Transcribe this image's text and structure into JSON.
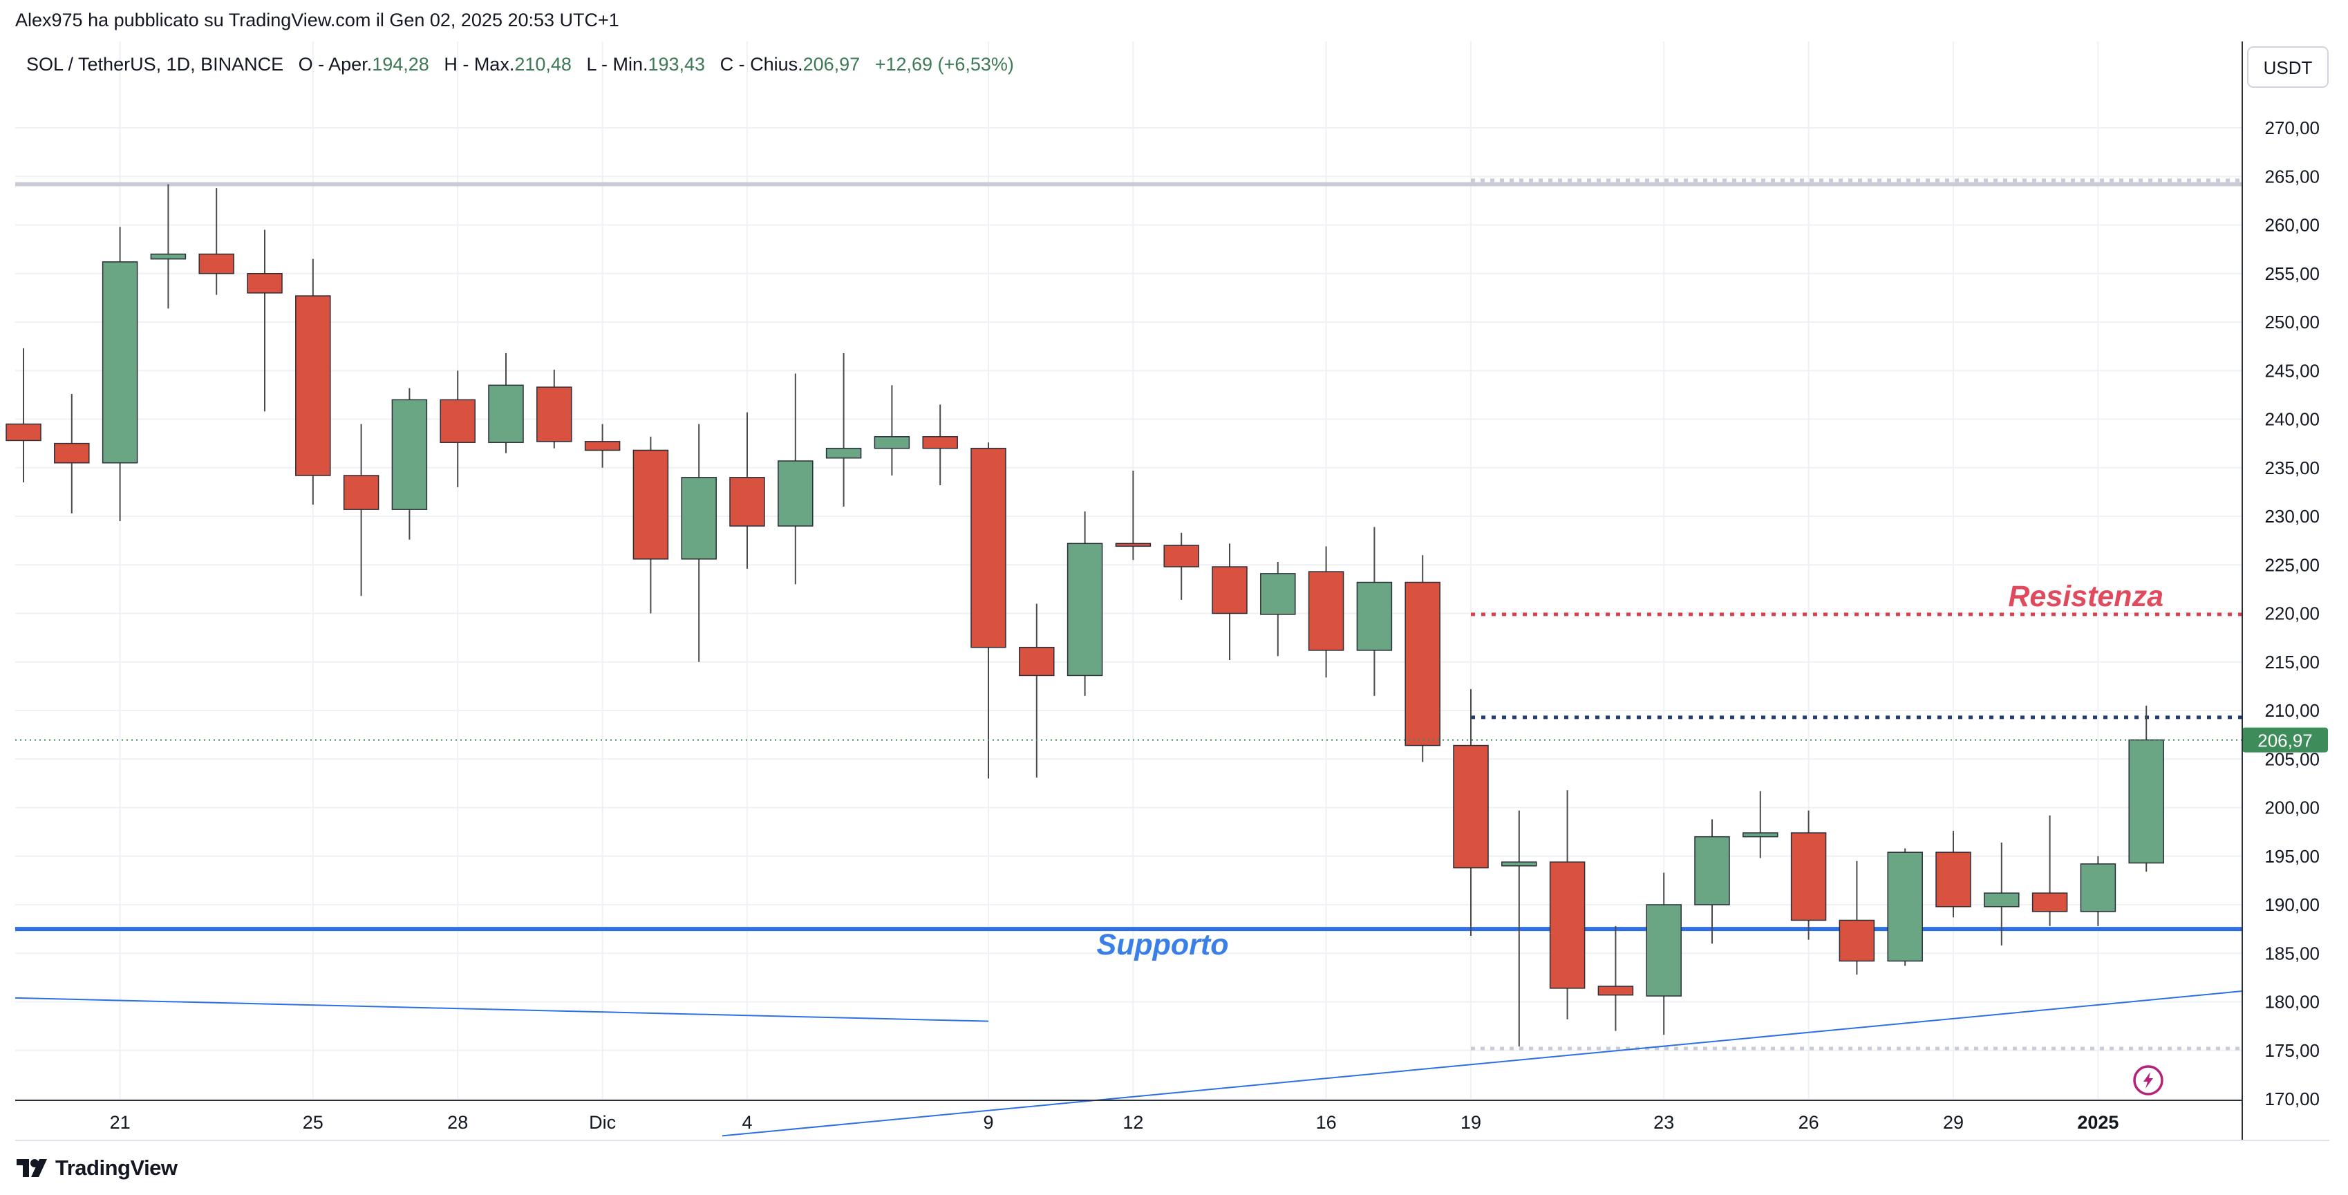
{
  "header": {
    "credit": "Alex975 ha pubblicato su TradingView.com il Gen 02, 2025 20:53 UTC+1"
  },
  "legend": {
    "symbol": "SOL / TetherUS, 1D, BINANCE",
    "open_label": "O - Aper.",
    "open_value": "194,28",
    "high_label": "H - Max.",
    "high_value": "210,48",
    "low_label": "L - Min.",
    "low_value": "193,43",
    "close_label": "C - Chius.",
    "close_value": "206,97",
    "change": "+12,69 (+6,53%)"
  },
  "currency_button": "USDT",
  "footer": {
    "logo_icon": "tradingview-logo-icon",
    "brand": "TradingView"
  },
  "colors": {
    "up": "#6aa584",
    "down": "#d9513f",
    "wick": "#4a4a4a",
    "support": "#2f6fe4",
    "resistance": "#d9434f",
    "pivot": "#1f3d6e",
    "price_tag": "#3d8c5a",
    "grid": "#eef1f5",
    "label_support": "#3a7ee8",
    "label_resistance": "#e04a5c",
    "zap": "#b5227a"
  },
  "chart_data": {
    "type": "candlestick",
    "symbol": "SOL / TetherUS",
    "interval": "1D",
    "exchange": "BINANCE",
    "ylim": [
      165.5,
      273
    ],
    "y_ticks": [
      170,
      175,
      180,
      185,
      190,
      195,
      200,
      205,
      210,
      215,
      220,
      225,
      230,
      235,
      240,
      245,
      250,
      255,
      260,
      265,
      270
    ],
    "y_tick_labels": [
      "170,00",
      "175,00",
      "180,00",
      "185,00",
      "190,00",
      "195,00",
      "200,00",
      "205,00",
      "210,00",
      "215,00",
      "220,00",
      "225,00",
      "230,00",
      "235,00",
      "240,00",
      "245,00",
      "250,00",
      "255,00",
      "260,00",
      "265,00",
      "270,00"
    ],
    "x_ticks": [
      {
        "label": "21",
        "i": 2
      },
      {
        "label": "25",
        "i": 6
      },
      {
        "label": "28",
        "i": 9
      },
      {
        "label": "Dic",
        "i": 12
      },
      {
        "label": "4",
        "i": 15
      },
      {
        "label": "9",
        "i": 20
      },
      {
        "label": "12",
        "i": 23
      },
      {
        "label": "16",
        "i": 27
      },
      {
        "label": "19",
        "i": 30
      },
      {
        "label": "23",
        "i": 34
      },
      {
        "label": "26",
        "i": 37
      },
      {
        "label": "29",
        "i": 40
      },
      {
        "label": "2025",
        "i": 43,
        "bold": true
      }
    ],
    "candles": [
      [
        239.5,
        247.3,
        233.5,
        237.8
      ],
      [
        237.5,
        242.6,
        230.3,
        235.5
      ],
      [
        235.5,
        259.8,
        229.5,
        256.2
      ],
      [
        256.5,
        264.2,
        251.4,
        257.0
      ],
      [
        257.0,
        263.8,
        252.8,
        255.0
      ],
      [
        255.0,
        259.5,
        240.8,
        253.0
      ],
      [
        252.7,
        256.5,
        231.2,
        234.2
      ],
      [
        234.2,
        239.5,
        221.8,
        230.7
      ],
      [
        230.7,
        243.2,
        227.6,
        242.0
      ],
      [
        242.0,
        245.0,
        233.0,
        237.6
      ],
      [
        237.6,
        246.8,
        236.5,
        243.5
      ],
      [
        243.3,
        245.1,
        237.0,
        237.7
      ],
      [
        237.7,
        239.5,
        235.0,
        236.8
      ],
      [
        236.8,
        238.2,
        220.0,
        225.6
      ],
      [
        225.6,
        239.5,
        215.0,
        234.0
      ],
      [
        234.0,
        240.7,
        224.6,
        229.0
      ],
      [
        229.0,
        244.7,
        223.0,
        235.7
      ],
      [
        236.0,
        246.8,
        231.0,
        237.0
      ],
      [
        237.0,
        243.5,
        234.2,
        238.2
      ],
      [
        238.2,
        241.5,
        233.2,
        237.0
      ],
      [
        237.0,
        237.6,
        203.0,
        216.5
      ],
      [
        216.5,
        221.0,
        203.1,
        213.6
      ],
      [
        213.6,
        230.5,
        211.5,
        227.2
      ],
      [
        227.2,
        234.7,
        225.5,
        227.0
      ],
      [
        227.0,
        228.3,
        221.4,
        224.8
      ],
      [
        224.8,
        227.2,
        215.2,
        220.0
      ],
      [
        219.9,
        225.3,
        215.6,
        224.1
      ],
      [
        224.3,
        226.9,
        213.4,
        216.2
      ],
      [
        216.2,
        228.9,
        211.5,
        223.2
      ],
      [
        223.2,
        226.0,
        204.7,
        206.4
      ],
      [
        206.4,
        212.2,
        186.8,
        193.8
      ],
      [
        194.0,
        199.7,
        175.4,
        194.4
      ],
      [
        194.4,
        201.8,
        178.2,
        181.4
      ],
      [
        181.6,
        187.8,
        177.0,
        180.7
      ],
      [
        180.6,
        193.3,
        176.6,
        190.0
      ],
      [
        190.0,
        198.8,
        186.0,
        197.0
      ],
      [
        197.0,
        201.7,
        194.8,
        197.4
      ],
      [
        197.4,
        199.7,
        186.4,
        188.4
      ],
      [
        188.4,
        194.5,
        182.8,
        184.2
      ],
      [
        184.2,
        195.8,
        183.7,
        195.4
      ],
      [
        195.4,
        197.6,
        188.7,
        189.8
      ],
      [
        189.8,
        196.4,
        185.8,
        191.2
      ],
      [
        191.2,
        199.2,
        187.8,
        189.3
      ],
      [
        189.3,
        195.0,
        187.8,
        194.2
      ],
      [
        194.3,
        210.5,
        193.4,
        206.97
      ]
    ],
    "last_price": 206.97,
    "last_price_label": "206,97",
    "annotations": {
      "support_label": "Supporto",
      "resistance_label": "Resistenza"
    }
  }
}
